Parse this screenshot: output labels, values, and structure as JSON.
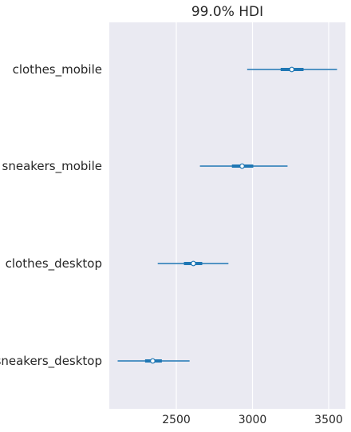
{
  "chart_data": {
    "type": "forest",
    "title": "99.0% HDI",
    "xlabel": "",
    "ylabel": "",
    "xlim": [
      2060,
      3610
    ],
    "xticks": [
      2500,
      3000,
      3500
    ],
    "xtick_labels": [
      "2500",
      "3000",
      "3500"
    ],
    "grid": true,
    "categories": [
      "clothes_mobile",
      "sneakers_mobile",
      "clothes_desktop",
      "sneakers_desktop"
    ],
    "series": [
      {
        "category": "clothes_mobile",
        "mean": 3258,
        "hdi_low": 2965,
        "hdi_high": 3555,
        "iqr_low": 3185,
        "iqr_high": 3335
      },
      {
        "category": "sneakers_mobile",
        "mean": 2932,
        "hdi_low": 2655,
        "hdi_high": 3230,
        "iqr_low": 2865,
        "iqr_high": 3005
      },
      {
        "category": "clothes_desktop",
        "mean": 2612,
        "hdi_low": 2378,
        "hdi_high": 2842,
        "iqr_low": 2550,
        "iqr_high": 2670
      },
      {
        "category": "sneakers_desktop",
        "mean": 2345,
        "hdi_low": 2115,
        "hdi_high": 2587,
        "iqr_low": 2295,
        "iqr_high": 2405
      }
    ],
    "colors": {
      "line": "#1f77b4",
      "marker_fill": "#ffffff",
      "background": "#eaeaf2",
      "grid": "#ffffff"
    }
  }
}
